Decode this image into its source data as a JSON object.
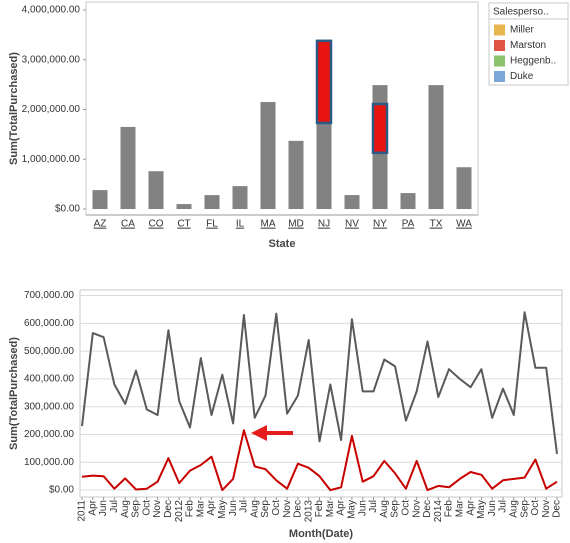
{
  "chart_data": [
    {
      "type": "bar",
      "y_label": "Sum(TotalPurchased)",
      "x_label": "State",
      "categories": [
        "AZ",
        "CA",
        "CO",
        "CT",
        "FL",
        "IL",
        "MA",
        "MD",
        "NJ",
        "NV",
        "NY",
        "PA",
        "TX",
        "WA"
      ],
      "values": [
        380000,
        1650000,
        760000,
        100000,
        280000,
        460000,
        2150000,
        1370000,
        1730000,
        280000,
        2490000,
        320000,
        2490000,
        840000
      ],
      "color": "#828282",
      "highlight": {
        "color": "#e8140f",
        "border": "#2b5a86",
        "low": [
          null,
          null,
          null,
          null,
          null,
          null,
          null,
          null,
          1730000,
          null,
          1130000,
          null,
          null,
          null
        ],
        "high": [
          null,
          null,
          null,
          null,
          null,
          null,
          null,
          null,
          3380000,
          null,
          2110000,
          null,
          null,
          null
        ]
      },
      "ylim": [
        -120000,
        4160000
      ],
      "yticks": [
        {
          "value": 0,
          "label": "$0.00"
        },
        {
          "value": 1000000,
          "label": "1,000,000.00"
        },
        {
          "value": 2000000,
          "label": "2,000,000.00"
        },
        {
          "value": 3000000,
          "label": "3,000,000.00"
        },
        {
          "value": 4000000,
          "label": "4,000,000.00"
        }
      ],
      "grid": false,
      "legend": {
        "title": "Salesperso..",
        "position": "right",
        "items": [
          {
            "label": "Miller",
            "color": "#e8b64c"
          },
          {
            "label": "Marston",
            "color": "#e05443"
          },
          {
            "label": "Heggenb..",
            "color": "#8dc26f"
          },
          {
            "label": "Duke",
            "color": "#7ba7d7"
          }
        ]
      }
    },
    {
      "type": "line",
      "y_label": "Sum(TotalPurchased)",
      "x_label": "Month(Date)",
      "categories": [
        "2011",
        "Apr",
        "Jun",
        "Jul",
        "Aug",
        "Sep",
        "Oct",
        "Nov",
        "Dec",
        "2012",
        "Feb",
        "Mar",
        "Apr",
        "May",
        "Jun",
        "Jul",
        "Aug",
        "Sep",
        "Oct",
        "Nov",
        "Dec",
        "2013",
        "Feb",
        "Mar",
        "Apr",
        "May",
        "Jun",
        "Jul",
        "Aug",
        "Sep",
        "Oct",
        "Nov",
        "Dec",
        "2014",
        "Feb",
        "Mar",
        "Apr",
        "May",
        "Jun",
        "Jul",
        "Aug",
        "Sep",
        "Oct",
        "Nov",
        "Dec"
      ],
      "series": [
        {
          "color": "#5a5a5a",
          "values": [
            230000,
            565000,
            550000,
            380000,
            310000,
            430000,
            290000,
            270000,
            575000,
            320000,
            225000,
            475000,
            270000,
            415000,
            240000,
            630000,
            260000,
            340000,
            635000,
            275000,
            340000,
            540000,
            175000,
            380000,
            180000,
            615000,
            355000,
            355000,
            470000,
            445000,
            250000,
            355000,
            535000,
            335000,
            435000,
            400000,
            370000,
            435000,
            260000,
            365000,
            270000,
            640000,
            440000,
            440000,
            130000
          ]
        },
        {
          "color": "#c80000",
          "values": [
            48000,
            52000,
            50000,
            5000,
            42000,
            2000,
            5000,
            30000,
            115000,
            25000,
            70000,
            90000,
            120000,
            0,
            40000,
            215000,
            85000,
            75000,
            35000,
            5000,
            95000,
            80000,
            50000,
            0,
            10000,
            195000,
            30000,
            50000,
            105000,
            60000,
            5000,
            105000,
            0,
            15000,
            10000,
            40000,
            65000,
            55000,
            5000,
            35000,
            40000,
            45000,
            110000,
            5000,
            30000
          ]
        }
      ],
      "ylim": [
        -25000,
        720000
      ],
      "yticks": [
        {
          "value": 0,
          "label": "$0.00"
        },
        {
          "value": 100000,
          "label": "100,000.00"
        },
        {
          "value": 200000,
          "label": "200,000.00"
        },
        {
          "value": 300000,
          "label": "300,000.00"
        },
        {
          "value": 400000,
          "label": "400,000.00"
        },
        {
          "value": 500000,
          "label": "500,000.00"
        },
        {
          "value": 600000,
          "label": "600,000.00"
        },
        {
          "value": 700000,
          "label": "700,000.00"
        }
      ],
      "grid": true
    }
  ]
}
